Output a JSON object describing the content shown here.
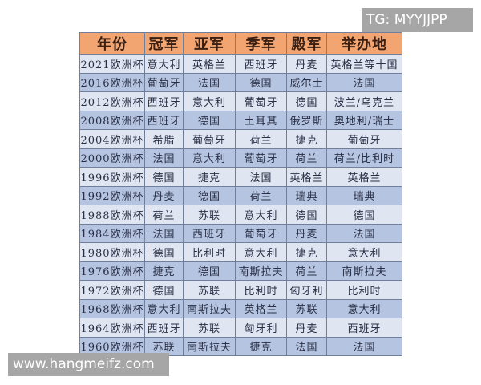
{
  "table": {
    "headers": [
      "年份",
      "冠军",
      "亚军",
      "季军",
      "殿军",
      "举办地"
    ],
    "rows": [
      [
        "2021欧洲杯",
        "意大利",
        "英格兰",
        "西班牙",
        "丹麦",
        "英格兰等十国"
      ],
      [
        "2016欧洲杯",
        "葡萄牙",
        "法国",
        "德国",
        "威尔士",
        "法国"
      ],
      [
        "2012欧洲杯",
        "西班牙",
        "意大利",
        "葡萄牙",
        "德国",
        "波兰/乌克兰"
      ],
      [
        "2008欧洲杯",
        "西班牙",
        "德国",
        "土耳其",
        "俄罗斯",
        "奥地利/瑞士"
      ],
      [
        "2004欧洲杯",
        "希腊",
        "葡萄牙",
        "荷兰",
        "捷克",
        "葡萄牙"
      ],
      [
        "2000欧洲杯",
        "法国",
        "意大利",
        "葡萄牙",
        "荷兰",
        "荷兰/比利时"
      ],
      [
        "1996欧洲杯",
        "德国",
        "捷克",
        "法国",
        "英格兰",
        "英格兰"
      ],
      [
        "1992欧洲杯",
        "丹麦",
        "德国",
        "荷兰",
        "瑞典",
        "瑞典"
      ],
      [
        "1988欧洲杯",
        "荷兰",
        "苏联",
        "意大利",
        "德国",
        "德国"
      ],
      [
        "1984欧洲杯",
        "法国",
        "西班牙",
        "葡萄牙",
        "丹麦",
        "法国"
      ],
      [
        "1980欧洲杯",
        "德国",
        "比利时",
        "意大利",
        "捷克",
        "意大利"
      ],
      [
        "1976欧洲杯",
        "捷克",
        "德国",
        "南斯拉夫",
        "荷兰",
        "南斯拉夫"
      ],
      [
        "1972欧洲杯",
        "德国",
        "苏联",
        "比利时",
        "匈牙利",
        "比利时"
      ],
      [
        "1968欧洲杯",
        "意大利",
        "南斯拉夫",
        "英格兰",
        "苏联",
        "意大利"
      ],
      [
        "1964欧洲杯",
        "西班牙",
        "苏联",
        "匈牙利",
        "丹麦",
        "西班牙"
      ],
      [
        "1960欧洲杯",
        "苏联",
        "南斯拉夫",
        "捷克",
        "法国",
        "法国"
      ]
    ]
  },
  "watermarks": {
    "tg": "TG: MYYJJPP",
    "site": "www.hangmeifz.com"
  },
  "colors": {
    "header_bg": "#f2a570",
    "row_light": "#dfe6f2",
    "row_dark": "#b4c4e1",
    "badge_bg": "#a6a6a6"
  }
}
